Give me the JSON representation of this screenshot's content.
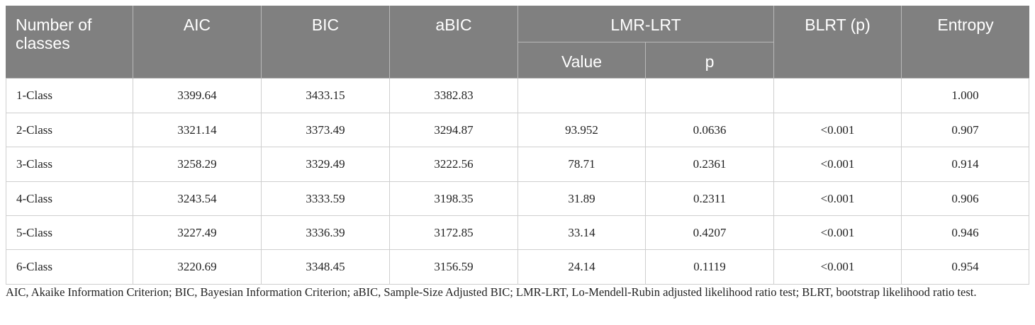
{
  "table": {
    "header": {
      "first": "Number of classes",
      "columns": [
        "AIC",
        "BIC",
        "aBIC"
      ],
      "group": "LMR-LRT",
      "group_columns": [
        "Value",
        "p"
      ],
      "after": [
        "BLRT (p)",
        "Entropy"
      ]
    },
    "rows": [
      [
        "1-Class",
        "3399.64",
        "3433.15",
        "3382.83",
        null,
        null,
        null,
        "1.000"
      ],
      [
        "2-Class",
        "3321.14",
        "3373.49",
        "3294.87",
        "93.952",
        "0.0636",
        "<0.001",
        "0.907"
      ],
      [
        "3-Class",
        "3258.29",
        "3329.49",
        "3222.56",
        "78.71",
        "0.2361",
        "<0.001",
        "0.914"
      ],
      [
        "4-Class",
        "3243.54",
        "3333.59",
        "3198.35",
        "31.89",
        "0.2311",
        "<0.001",
        "0.906"
      ],
      [
        "5-Class",
        "3227.49",
        "3336.39",
        "3172.85",
        "33.14",
        "0.4207",
        "<0.001",
        "0.946"
      ],
      [
        "6-Class",
        "3220.69",
        "3348.45",
        "3156.59",
        "24.14",
        "0.1119",
        "<0.001",
        "0.954"
      ]
    ],
    "note": "AIC, Akaike Information Criterion; BIC, Bayesian Information Criterion; aBIC, Sample-Size Adjusted BIC; LMR-LRT, Lo-Mendell-Rubin adjusted likelihood ratio test; BLRT, bootstrap likelihood ratio test."
  }
}
